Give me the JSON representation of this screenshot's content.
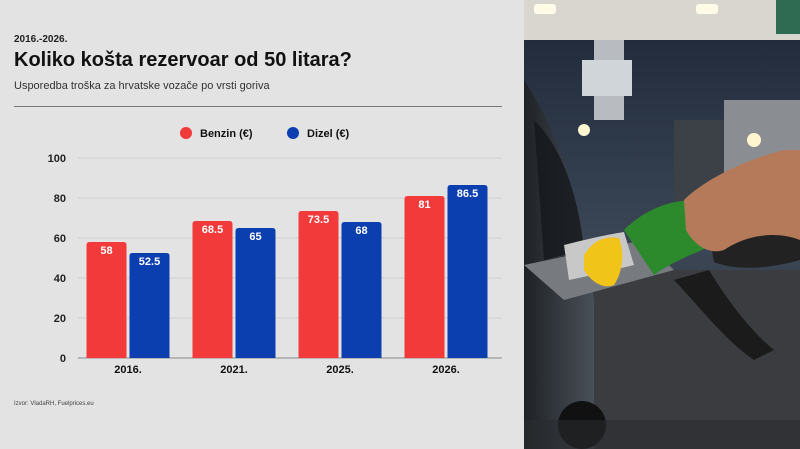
{
  "header": {
    "date_range": "2016.-2026.",
    "title": "Koliko košta rezervoar od 50 litara?",
    "subtitle": "Usporedba troška za hrvatske vozače po vrsti goriva"
  },
  "footer": {
    "source": "Izvor: VladaRH, Fuelprices.eu"
  },
  "chart_data": {
    "type": "bar",
    "title": "Koliko košta rezervoar od 50 litara?",
    "categories": [
      "2016.",
      "2021.",
      "2025.",
      "2026."
    ],
    "series": [
      {
        "name": "Benzin (€)",
        "values": [
          58,
          68.5,
          73.5,
          81
        ],
        "color": "#f23a3a"
      },
      {
        "name": "Dizel (€)",
        "values": [
          52.5,
          65,
          68,
          86.5
        ],
        "color": "#0b3fb0"
      }
    ],
    "value_labels": [
      [
        "58",
        "68.5",
        "73.5",
        "81"
      ],
      [
        "52.5",
        "65",
        "68",
        "86.5"
      ]
    ],
    "yticks": [
      "0",
      "20",
      "40",
      "60",
      "80",
      "100"
    ],
    "ylim": [
      0,
      100
    ],
    "grid": true,
    "legend_position": "top-center"
  },
  "photo": {
    "subject": "fuel-nozzle-refueling-car"
  }
}
